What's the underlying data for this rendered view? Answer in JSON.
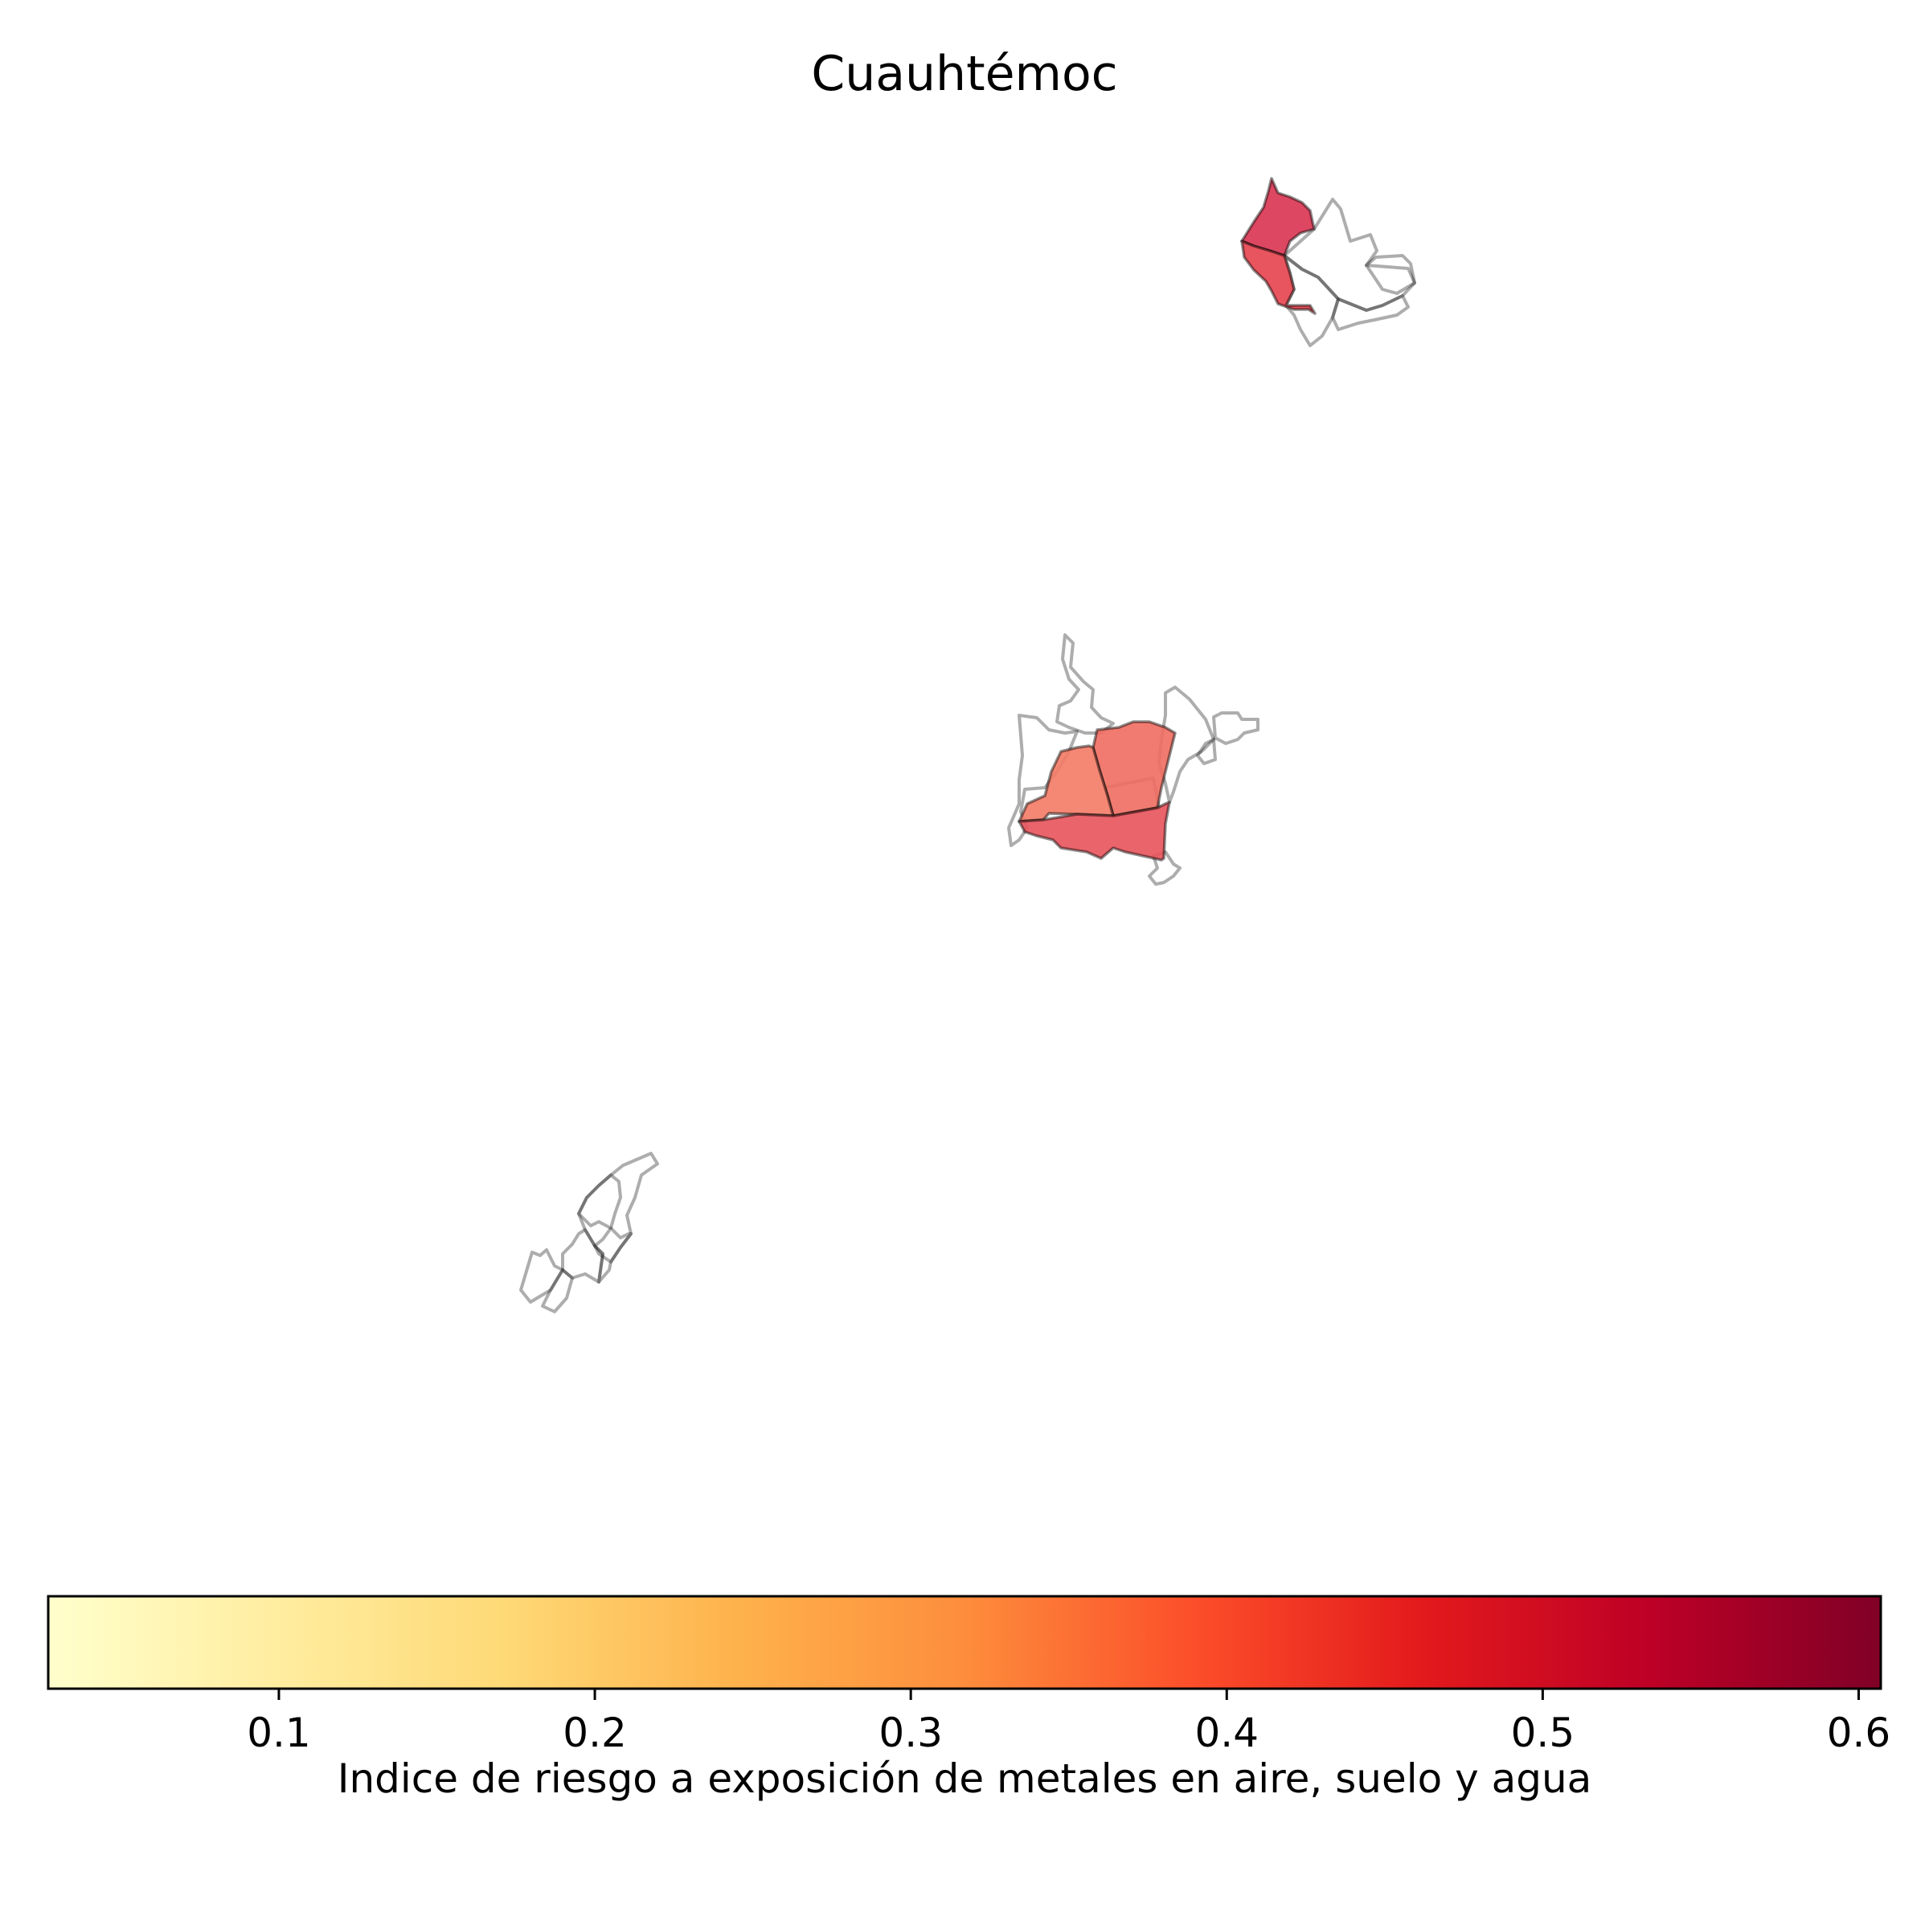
{
  "title": "Cuauhtémoc",
  "colorbar": {
    "label": "Indice de riesgo a exposición de metales en aire, suelo y agua",
    "colormap": "YlOrRd",
    "range": [
      0.027,
      0.607
    ],
    "ticks": [
      0.1,
      0.2,
      0.3,
      0.4,
      0.5,
      0.6
    ],
    "tick_labels": [
      "0.1",
      "0.2",
      "0.3",
      "0.4",
      "0.5",
      "0.6"
    ],
    "colors": [
      "#ffffcc",
      "#ffeda0",
      "#fed976",
      "#feb24c",
      "#fd8d3c",
      "#fc4e2a",
      "#e31a1c",
      "#bd0026",
      "#800026"
    ]
  },
  "map_data": {
    "type": "choropleth",
    "filled_regions": [
      {
        "cluster": "north",
        "value": 0.53,
        "color": "#d93351"
      },
      {
        "cluster": "north",
        "value": 0.48,
        "color": "#e6424e"
      },
      {
        "cluster": "center",
        "value": 0.41,
        "color": "#ef6d60"
      },
      {
        "cluster": "center",
        "value": 0.38,
        "color": "#f47a66"
      },
      {
        "cluster": "center",
        "value": 0.45,
        "color": "#e8535b"
      }
    ],
    "no_data_clusters": [
      "north",
      "center",
      "southwest"
    ]
  }
}
